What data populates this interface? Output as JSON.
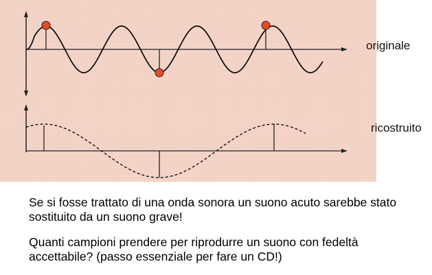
{
  "labels": {
    "original": "originale",
    "reconstructed": "ricostruito"
  },
  "text": {
    "paragraph_1": "Se si fosse trattato di una onda sonora un suono acuto sarebbe stato sostituito da un suono grave!",
    "paragraph_2": "Quanti campioni prendere per riprodurre un suono con fedeltà accettabile? (passo essenziale per fare un CD!)"
  },
  "colors": {
    "background": "#f4d3c7",
    "axis": "#222222",
    "wave": "#111111",
    "sample_point": "#e84a2a",
    "text": "#000000"
  }
}
